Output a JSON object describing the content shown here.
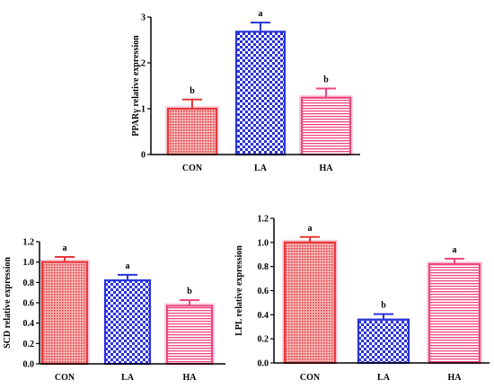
{
  "chart_data": [
    {
      "type": "bar",
      "ylabel": "PPARγ relative expression",
      "categories": [
        "CON",
        "LA",
        "HA"
      ],
      "values": [
        1.0,
        2.68,
        1.24
      ],
      "errors": [
        0.2,
        0.2,
        0.2
      ],
      "significance": [
        "b",
        "a",
        "b"
      ],
      "ylim": [
        0,
        3
      ],
      "yticks": [
        0,
        1,
        2,
        3
      ],
      "grid": false,
      "bar_colors": [
        "#e8393c",
        "#2a33d9",
        "#f0457f"
      ]
    },
    {
      "type": "bar",
      "ylabel": "SCD relative expression",
      "categories": [
        "CON",
        "LA",
        "HA"
      ],
      "values": [
        1.0,
        0.82,
        0.57
      ],
      "errors": [
        0.05,
        0.055,
        0.055
      ],
      "significance": [
        "a",
        "a",
        "b"
      ],
      "ylim": [
        0,
        1.2
      ],
      "yticks": [
        0.0,
        0.2,
        0.4,
        0.6,
        0.8,
        1.0,
        1.2
      ],
      "grid": false,
      "bar_colors": [
        "#e8393c",
        "#2a33d9",
        "#f0457f"
      ]
    },
    {
      "type": "bar",
      "ylabel": "LPL relative expression",
      "categories": [
        "CON",
        "LA",
        "HA"
      ],
      "values": [
        1.0,
        0.36,
        0.82
      ],
      "errors": [
        0.045,
        0.045,
        0.045
      ],
      "significance": [
        "a",
        "b",
        "a"
      ],
      "ylim": [
        0,
        1.2
      ],
      "yticks": [
        0.0,
        0.2,
        0.4,
        0.6,
        0.8,
        1.0,
        1.2
      ],
      "grid": false,
      "bar_colors": [
        "#e8393c",
        "#2a33d9",
        "#f0457f"
      ]
    }
  ]
}
